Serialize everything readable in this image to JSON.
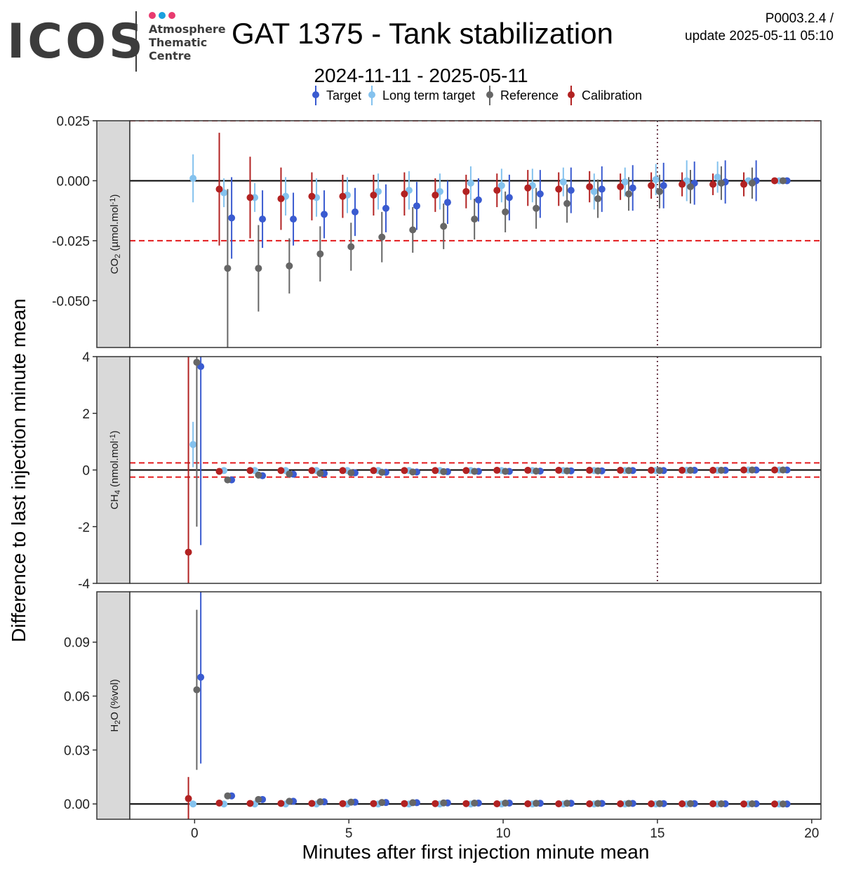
{
  "header": {
    "logo_text": "ICOS",
    "logo_subtitle": [
      "Atmosphere",
      "Thematic",
      "Centre"
    ],
    "logo_dot_colors": [
      "#e83b6f",
      "#1aa0de",
      "#e83b6f"
    ],
    "title": "GAT 1375 - Tank stabilization",
    "version": "P0003.2.4 /",
    "update": "update  2025-05-11 05:10",
    "subtitle": "2024-11-11 - 2025-05-11"
  },
  "chart_data": {
    "type": "scatter",
    "xlabel": "Minutes after first injection minute mean",
    "ylabel": "Difference to last injection minute mean",
    "xlim": [
      -2.1,
      20.3
    ],
    "x_ticks": [
      0,
      5,
      10,
      15,
      20
    ],
    "reference_line_x": 15,
    "legend_position": "top",
    "legend": [
      {
        "name": "Target",
        "color": "#3a5bd0"
      },
      {
        "name": "Long term target",
        "color": "#84c2ee"
      },
      {
        "name": "Reference",
        "color": "#666666"
      },
      {
        "name": "Calibration",
        "color": "#b22222"
      }
    ],
    "series_offsets": [
      0.2,
      -0.05,
      0.07,
      -0.2
    ],
    "panels": [
      {
        "strip_label": "CO2 (µmol.mol-1)",
        "strip_main": "CO",
        "strip_sub": "2",
        "strip_rest": " (µmol.mol",
        "strip_sup": "-1",
        "strip_end": ")",
        "ylim": [
          -0.0695,
          0.025
        ],
        "y_ticks": [
          0.025,
          0,
          -0.025,
          -0.05
        ],
        "y_tick_labels": [
          "0.025",
          "0.000",
          "-0.025",
          "-0.050"
        ],
        "threshold_lines": [
          -0.025,
          0.025
        ],
        "series": [
          {
            "name": "Target",
            "x": [
              1,
              2,
              3,
              4,
              5,
              6,
              7,
              8,
              9,
              10,
              11,
              12,
              13,
              14,
              15,
              16,
              17,
              18,
              19
            ],
            "y": [
              -0.0155,
              -0.016,
              -0.016,
              -0.014,
              -0.013,
              -0.0115,
              -0.0105,
              -0.009,
              -0.008,
              -0.007,
              -0.0055,
              -0.004,
              -0.0035,
              -0.003,
              -0.002,
              -0.001,
              -0.0005,
              0.0,
              0.0
            ],
            "err": [
              0.017,
              0.012,
              0.011,
              0.01,
              0.01,
              0.01,
              0.01,
              0.009,
              0.009,
              0.0095,
              0.01,
              0.0095,
              0.0095,
              0.0095,
              0.0095,
              0.009,
              0.009,
              0.0085,
              0.0005
            ]
          },
          {
            "name": "Long term target",
            "x": [
              0,
              1,
              2,
              3,
              4,
              5,
              6,
              7,
              8,
              9,
              10,
              11,
              12,
              13,
              14,
              15,
              16,
              17,
              18,
              19
            ],
            "y": [
              0.001,
              -0.005,
              -0.007,
              -0.0065,
              -0.007,
              -0.006,
              -0.0045,
              -0.004,
              -0.0045,
              -0.001,
              -0.002,
              -0.002,
              -0.0005,
              -0.0045,
              -0.0005,
              0.0005,
              0.0,
              0.0015,
              0.0,
              0.0
            ],
            "err": [
              0.01,
              0.006,
              0.006,
              0.008,
              0.008,
              0.0075,
              0.0075,
              0.008,
              0.0075,
              0.007,
              0.007,
              0.007,
              0.006,
              0.0075,
              0.006,
              0.0065,
              0.0085,
              0.0065,
              0.0005,
              0.0005
            ]
          },
          {
            "name": "Reference",
            "x": [
              1,
              2,
              3,
              4,
              5,
              6,
              7,
              8,
              9,
              10,
              11,
              12,
              13,
              14,
              15,
              16,
              17,
              18,
              19
            ],
            "y": [
              -0.0365,
              -0.0365,
              -0.0355,
              -0.0305,
              -0.0275,
              -0.0235,
              -0.0205,
              -0.019,
              -0.016,
              -0.013,
              -0.0115,
              -0.0095,
              -0.0075,
              -0.0055,
              -0.0045,
              -0.0025,
              -0.001,
              -0.001,
              0.0
            ],
            "err": [
              0.033,
              0.018,
              0.0115,
              0.0115,
              0.01,
              0.0105,
              0.0095,
              0.0095,
              0.0085,
              0.0085,
              0.0085,
              0.008,
              0.008,
              0.007,
              0.007,
              0.007,
              0.007,
              0.0065,
              0.0005
            ]
          },
          {
            "name": "Calibration",
            "x": [
              1,
              2,
              3,
              4,
              5,
              6,
              7,
              8,
              9,
              10,
              11,
              12,
              13,
              14,
              15,
              16,
              17,
              18,
              19
            ],
            "y": [
              -0.0035,
              -0.007,
              -0.0075,
              -0.0065,
              -0.0065,
              -0.006,
              -0.0055,
              -0.006,
              -0.0045,
              -0.004,
              -0.003,
              -0.0035,
              -0.0025,
              -0.0025,
              -0.002,
              -0.0015,
              -0.0015,
              -0.0015,
              0.0
            ],
            "err": [
              0.0235,
              0.017,
              0.013,
              0.01,
              0.009,
              0.0085,
              0.009,
              0.007,
              0.007,
              0.007,
              0.0075,
              0.007,
              0.0065,
              0.0055,
              0.0055,
              0.005,
              0.0045,
              0.005,
              0.0005
            ]
          }
        ]
      },
      {
        "strip_label": "CH4 (nmol.mol-1)",
        "strip_main": "CH",
        "strip_sub": "4",
        "strip_rest": " (nmol.mol",
        "strip_sup": "-1",
        "strip_end": ")",
        "ylim": [
          -4,
          4
        ],
        "y_ticks": [
          4,
          2,
          0,
          -2,
          -4
        ],
        "y_tick_labels": [
          "4",
          "2",
          "0",
          "-2",
          "-4"
        ],
        "threshold_lines": [
          0.25,
          -0.25
        ],
        "series": [
          {
            "name": "Target",
            "x": [
              0,
              1,
              2,
              3,
              4,
              5,
              6,
              7,
              8,
              9,
              10,
              11,
              12,
              13,
              14,
              15,
              16,
              17,
              18,
              19
            ],
            "y": [
              3.65,
              -0.35,
              -0.2,
              -0.15,
              -0.12,
              -0.1,
              -0.08,
              -0.07,
              -0.06,
              -0.05,
              -0.05,
              -0.04,
              -0.03,
              -0.03,
              -0.02,
              -0.02,
              -0.01,
              -0.01,
              0.0,
              0.0
            ],
            "err": [
              6.3,
              0.05,
              0.05,
              0.05,
              0.04,
              0.04,
              0.04,
              0.04,
              0.04,
              0.04,
              0.04,
              0.03,
              0.03,
              0.03,
              0.03,
              0.03,
              0.03,
              0.03,
              0.02,
              0.02
            ]
          },
          {
            "name": "Long term target",
            "x": [
              0,
              1,
              2,
              3,
              4,
              5,
              6,
              7,
              8,
              9,
              10,
              11,
              12,
              13,
              14,
              15,
              16,
              17,
              18,
              19
            ],
            "y": [
              0.9,
              -0.02,
              -0.02,
              -0.02,
              -0.02,
              -0.02,
              -0.02,
              -0.02,
              -0.02,
              -0.02,
              -0.02,
              -0.02,
              -0.02,
              -0.02,
              -0.02,
              -0.02,
              -0.01,
              -0.01,
              0.0,
              0.0
            ],
            "err": [
              0.8,
              0.05,
              0.05,
              0.05,
              0.05,
              0.05,
              0.05,
              0.05,
              0.05,
              0.05,
              0.05,
              0.05,
              0.05,
              0.05,
              0.05,
              0.05,
              0.05,
              0.05,
              0.03,
              0.03
            ]
          },
          {
            "name": "Reference",
            "x": [
              0,
              1,
              2,
              3,
              4,
              5,
              6,
              7,
              8,
              9,
              10,
              11,
              12,
              13,
              14,
              15,
              16,
              17,
              18,
              19
            ],
            "y": [
              3.8,
              -0.35,
              -0.18,
              -0.14,
              -0.12,
              -0.1,
              -0.08,
              -0.07,
              -0.06,
              -0.05,
              -0.05,
              -0.04,
              -0.03,
              -0.03,
              -0.02,
              -0.02,
              -0.01,
              -0.01,
              0.0,
              0.0
            ],
            "err": [
              5.8,
              0.05,
              0.05,
              0.05,
              0.04,
              0.04,
              0.04,
              0.04,
              0.04,
              0.04,
              0.04,
              0.03,
              0.03,
              0.03,
              0.03,
              0.03,
              0.03,
              0.03,
              0.02,
              0.02
            ]
          },
          {
            "name": "Calibration",
            "x": [
              0,
              1,
              2,
              3,
              4,
              5,
              6,
              7,
              8,
              9,
              10,
              11,
              12,
              13,
              14,
              15,
              16,
              17,
              18,
              19
            ],
            "y": [
              -2.9,
              -0.05,
              -0.02,
              -0.02,
              -0.02,
              -0.02,
              -0.02,
              -0.02,
              -0.02,
              -0.02,
              -0.01,
              -0.01,
              -0.01,
              -0.01,
              -0.01,
              -0.01,
              -0.01,
              -0.01,
              0.0,
              0.0
            ],
            "err": [
              6.9,
              0.05,
              0.05,
              0.05,
              0.05,
              0.05,
              0.05,
              0.05,
              0.05,
              0.05,
              0.04,
              0.04,
              0.04,
              0.04,
              0.04,
              0.04,
              0.04,
              0.04,
              0.02,
              0.02
            ]
          }
        ]
      },
      {
        "strip_label": "H2O (%vol)",
        "strip_main": "H",
        "strip_sub": "2",
        "strip_rest": "O (%vol)",
        "strip_sup": "",
        "strip_end": "",
        "ylim": [
          -0.0085,
          0.118
        ],
        "y_ticks": [
          0.09,
          0.06,
          0.03,
          0
        ],
        "y_tick_labels": [
          "0.09",
          "0.06",
          "0.03",
          "0.00"
        ],
        "threshold_lines": [],
        "series": [
          {
            "name": "Target",
            "x": [
              0,
              1,
              2,
              3,
              4,
              5,
              6,
              7,
              8,
              9,
              10,
              11,
              12,
              13,
              14,
              15,
              16,
              17,
              18,
              19
            ],
            "y": [
              0.0705,
              0.0045,
              0.0025,
              0.0015,
              0.0012,
              0.001,
              0.0008,
              0.0007,
              0.0006,
              0.0005,
              0.0005,
              0.0004,
              0.0004,
              0.0003,
              0.0003,
              0.0002,
              0.0002,
              0.0001,
              0.0001,
              0.0
            ],
            "err": [
              0.048,
              0.0005,
              0.0005,
              0.0005,
              0.0005,
              0.0005,
              0.0005,
              0.0005,
              0.0005,
              0.0005,
              0.0005,
              0.0005,
              0.0005,
              0.0005,
              0.0005,
              0.0005,
              0.0005,
              0.0005,
              0.0005,
              0.0005
            ]
          },
          {
            "name": "Long term target",
            "x": [
              0,
              1,
              2,
              3,
              4,
              5,
              6,
              7,
              8,
              9,
              10,
              11,
              12,
              13,
              14,
              15,
              16,
              17,
              18,
              19
            ],
            "y": [
              0.0,
              0.0,
              0.0,
              0.0,
              0.0,
              0.0,
              0.0,
              0.0,
              0.0,
              0.0,
              0.0,
              0.0,
              0.0,
              0.0,
              0.0,
              0.0,
              0.0,
              0.0,
              0.0,
              0.0
            ],
            "err": [
              0.0005,
              0.0005,
              0.0005,
              0.0005,
              0.0005,
              0.0005,
              0.0005,
              0.0005,
              0.0005,
              0.0005,
              0.0005,
              0.0005,
              0.0005,
              0.0005,
              0.0005,
              0.0005,
              0.0005,
              0.0005,
              0.0005,
              0.0005
            ]
          },
          {
            "name": "Reference",
            "x": [
              0,
              1,
              2,
              3,
              4,
              5,
              6,
              7,
              8,
              9,
              10,
              11,
              12,
              13,
              14,
              15,
              16,
              17,
              18,
              19
            ],
            "y": [
              0.0635,
              0.0045,
              0.0025,
              0.0015,
              0.0012,
              0.001,
              0.0008,
              0.0007,
              0.0006,
              0.0005,
              0.0005,
              0.0004,
              0.0004,
              0.0003,
              0.0003,
              0.0002,
              0.0002,
              0.0001,
              0.0001,
              0.0
            ],
            "err": [
              0.0445,
              0.0005,
              0.0005,
              0.0005,
              0.0005,
              0.0005,
              0.0005,
              0.0005,
              0.0005,
              0.0005,
              0.0005,
              0.0005,
              0.0005,
              0.0005,
              0.0005,
              0.0005,
              0.0005,
              0.0005,
              0.0005,
              0.0005
            ]
          },
          {
            "name": "Calibration",
            "x": [
              0,
              1,
              2,
              3,
              4,
              5,
              6,
              7,
              8,
              9,
              10,
              11,
              12,
              13,
              14,
              15,
              16,
              17,
              18,
              19
            ],
            "y": [
              0.003,
              0.0005,
              0.0003,
              0.0003,
              0.0003,
              0.0002,
              0.0002,
              0.0002,
              0.0002,
              0.0002,
              0.0001,
              0.0001,
              0.0001,
              0.0001,
              0.0001,
              0.0001,
              0.0001,
              0.0001,
              0.0,
              0.0
            ],
            "err": [
              0.012,
              0.0005,
              0.0005,
              0.0005,
              0.0005,
              0.0005,
              0.0005,
              0.0005,
              0.0005,
              0.0005,
              0.0005,
              0.0005,
              0.0005,
              0.0005,
              0.0005,
              0.0005,
              0.0005,
              0.0005,
              0.0005,
              0.0005
            ]
          }
        ]
      }
    ]
  }
}
